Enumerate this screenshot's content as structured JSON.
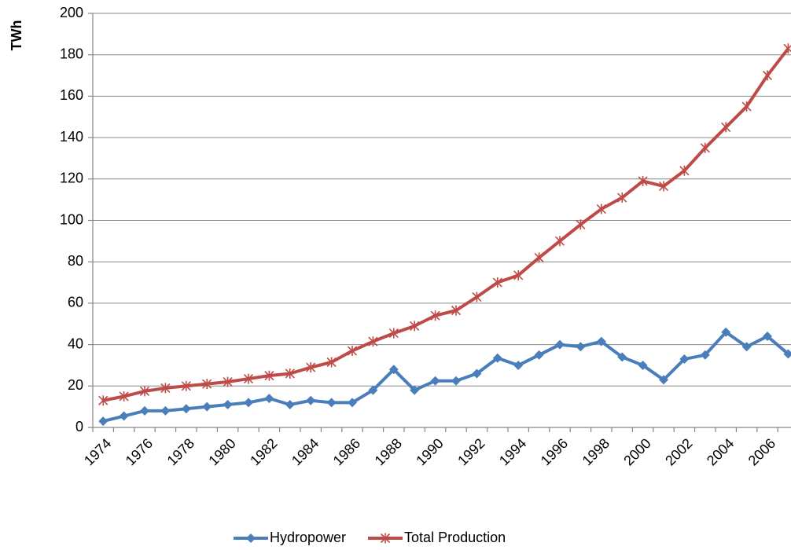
{
  "chart_data": {
    "type": "line",
    "y_label": "TWh",
    "categories": [
      "1974",
      null,
      "1976",
      null,
      "1978",
      null,
      "1980",
      null,
      "1982",
      null,
      "1984",
      null,
      "1986",
      null,
      "1988",
      null,
      "1990",
      null,
      "1992",
      null,
      "1994",
      null,
      "1996",
      null,
      "1998",
      null,
      "2000",
      null,
      "2002",
      null,
      "2004",
      null,
      "2006",
      null
    ],
    "series": [
      {
        "name": "Hydropower",
        "color": "#4a7ebb",
        "marker": "diamond",
        "values": [
          3,
          5.5,
          8,
          8,
          9,
          10,
          11,
          12,
          14,
          11,
          13,
          12,
          12,
          18,
          28,
          18,
          22.5,
          22.5,
          26,
          33.5,
          30,
          35,
          40,
          39,
          41.5,
          34,
          30,
          23,
          33,
          35,
          46,
          39,
          44,
          35.5
        ]
      },
      {
        "name": "Total Production",
        "color": "#be4b48",
        "marker": "star",
        "values": [
          13,
          15,
          17.5,
          19,
          20,
          21,
          22,
          23.5,
          25,
          26,
          29,
          31.5,
          37,
          41.5,
          45.5,
          49,
          54,
          56.5,
          63,
          70,
          73.5,
          82,
          90,
          98,
          105.5,
          111,
          119,
          116.5,
          124,
          135,
          145,
          155,
          170,
          183
        ]
      }
    ],
    "ylim": [
      0,
      200
    ],
    "yticks": [
      0,
      20,
      40,
      60,
      80,
      100,
      120,
      140,
      160,
      180,
      200
    ],
    "grid": true,
    "legend": "bottom"
  }
}
